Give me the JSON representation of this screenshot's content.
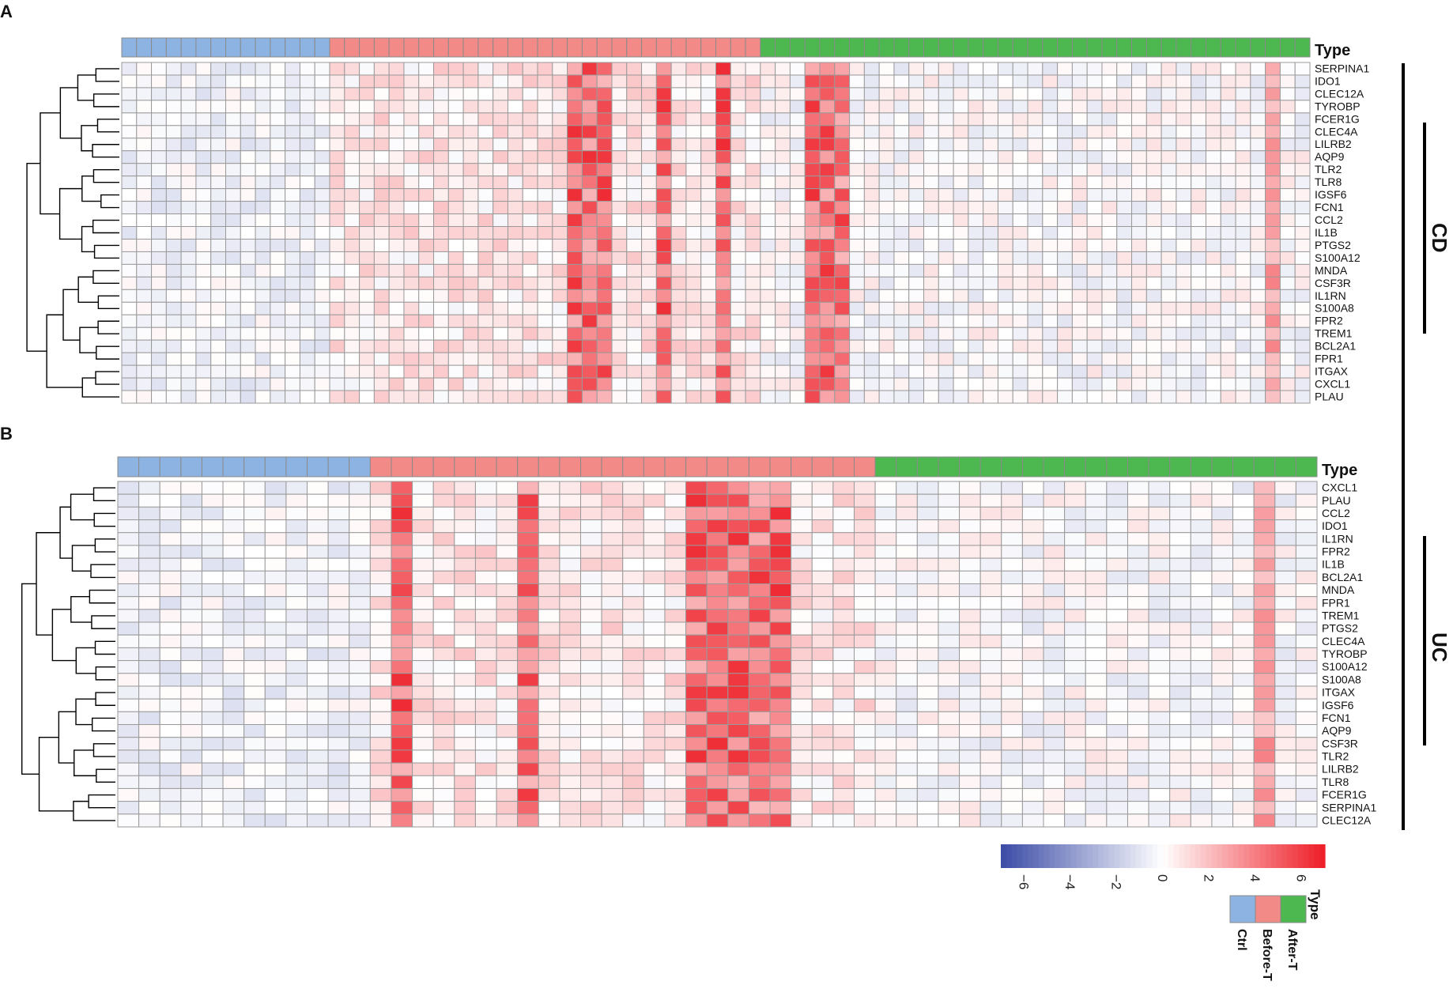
{
  "legend": {
    "type_title": "Type",
    "groups": [
      {
        "name": "Ctrl",
        "color": "#8db3e2"
      },
      {
        "name": "Before-T",
        "color": "#f28b87"
      },
      {
        "name": "After-T",
        "color": "#4cb84f"
      }
    ],
    "color_scale": {
      "min": -7,
      "max": 7,
      "low_color": "#3b4ba6",
      "mid_color": "#ffffff",
      "high_color": "#ee1c25",
      "ticks": [
        -6,
        -4,
        -2,
        0,
        2,
        4,
        6
      ]
    }
  },
  "groups_labels": {
    "cd": "CD",
    "uc": "UC"
  },
  "chart_data": [
    {
      "type": "heatmap",
      "panel": "A",
      "annotation_title": "Type",
      "n_samples": {
        "Ctrl": 14,
        "Before-T": 29,
        "After-T": 37
      },
      "genes": [
        "SERPINA1",
        "IDO1",
        "CLEC12A",
        "TYROBP",
        "FCER1G",
        "CLEC4A",
        "LILRB2",
        "AQP9",
        "TLR2",
        "TLR8",
        "IGSF6",
        "FCN1",
        "CCL2",
        "IL1B",
        "PTGS2",
        "S100A12",
        "MNDA",
        "CSF3R",
        "IL1RN",
        "S100A8",
        "FPR2",
        "TREM1",
        "BCL2A1",
        "FPR1",
        "ITGAX",
        "CXCL1",
        "PLAU"
      ],
      "value_range": [
        -7,
        7
      ],
      "hot_columns_before_t": [
        16,
        17,
        18,
        22,
        26,
        32,
        33,
        34
      ],
      "hot_columns_after_t": [
        34
      ]
    },
    {
      "type": "heatmap",
      "panel": "B",
      "annotation_title": "Type",
      "n_samples": {
        "Ctrl": 12,
        "Before-T": 24,
        "After-T": 21
      },
      "genes": [
        "CXCL1",
        "PLAU",
        "CCL2",
        "IDO1",
        "IL1RN",
        "FPR2",
        "IL1B",
        "BCL2A1",
        "MNDA",
        "FPR1",
        "TREM1",
        "PTGS2",
        "CLEC4A",
        "TYROBP",
        "S100A12",
        "S100A8",
        "ITGAX",
        "IGSF6",
        "FCN1",
        "AQP9",
        "CSF3R",
        "TLR2",
        "LILRB2",
        "TLR8",
        "FCER1G",
        "SERPINA1",
        "CLEC12A"
      ],
      "value_range": [
        -7,
        7
      ],
      "hot_columns_before_t": [
        1,
        7,
        15,
        16,
        17,
        18,
        19
      ],
      "hot_columns_after_t": [
        18
      ]
    }
  ]
}
